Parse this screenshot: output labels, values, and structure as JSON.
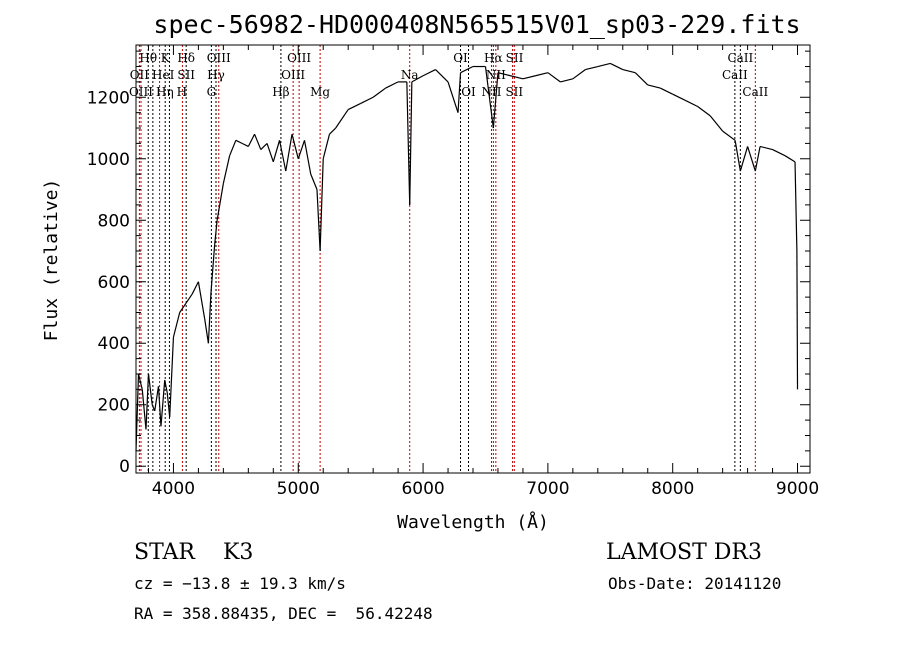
{
  "chart_data": {
    "type": "line",
    "title": "spec-56982-HD000408N565515V01_sp03-229.fits",
    "xlabel": "Wavelength (Å)",
    "ylabel": "Flux (relative)",
    "xlim": [
      3700,
      9100
    ],
    "ylim": [
      -22,
      1370
    ],
    "xticks": [
      4000,
      5000,
      6000,
      7000,
      8000,
      9000
    ],
    "yticks": [
      0,
      200,
      400,
      600,
      800,
      1000,
      1200
    ],
    "grid": false,
    "series": [
      {
        "name": "spectrum",
        "color": "#000000",
        "x": [
          3700,
          3720,
          3750,
          3780,
          3800,
          3830,
          3850,
          3880,
          3900,
          3930,
          3950,
          3970,
          4000,
          4050,
          4100,
          4150,
          4200,
          4250,
          4280,
          4300,
          4330,
          4350,
          4400,
          4450,
          4500,
          4550,
          4600,
          4650,
          4700,
          4750,
          4800,
          4850,
          4900,
          4950,
          5000,
          5050,
          5100,
          5150,
          5175,
          5200,
          5250,
          5300,
          5400,
          5500,
          5600,
          5700,
          5800,
          5870,
          5893,
          5910,
          6000,
          6100,
          6200,
          6280,
          6300,
          6400,
          6500,
          6563,
          6600,
          6700,
          6800,
          6900,
          7000,
          7100,
          7200,
          7300,
          7400,
          7500,
          7600,
          7700,
          7800,
          7900,
          8000,
          8100,
          8200,
          8300,
          8400,
          8500,
          8542,
          8600,
          8662,
          8700,
          8800,
          8900,
          8980,
          8995,
          9000
        ],
        "y": [
          50,
          300,
          250,
          120,
          300,
          200,
          180,
          260,
          130,
          280,
          240,
          160,
          420,
          500,
          530,
          560,
          600,
          480,
          400,
          560,
          720,
          800,
          920,
          1010,
          1060,
          1050,
          1040,
          1080,
          1030,
          1050,
          990,
          1060,
          960,
          1080,
          1000,
          1060,
          950,
          900,
          700,
          1000,
          1080,
          1100,
          1160,
          1180,
          1200,
          1230,
          1250,
          1250,
          850,
          1250,
          1270,
          1290,
          1250,
          1150,
          1280,
          1300,
          1300,
          1100,
          1280,
          1270,
          1260,
          1270,
          1280,
          1250,
          1260,
          1290,
          1300,
          1310,
          1290,
          1280,
          1240,
          1230,
          1210,
          1190,
          1170,
          1140,
          1090,
          1060,
          960,
          1040,
          960,
          1040,
          1030,
          1010,
          990,
          700,
          250
        ]
      }
    ],
    "lines": [
      {
        "label": "Hθ",
        "wl": 3798,
        "color": "#000000",
        "row": 0
      },
      {
        "label": "OII",
        "wl": 3727,
        "color": "#c00000",
        "row": 1
      },
      {
        "label": "OIII",
        "wl": 3740,
        "color": "#c00000",
        "row": 2
      },
      {
        "label": "Hη",
        "wl": 3835,
        "color": "#000000",
        "row": 2
      },
      {
        "label": "HeI",
        "wl": 3889,
        "color": "#c00000",
        "row": 1
      },
      {
        "label": "K",
        "wl": 3934,
        "color": "#000000",
        "row": 0
      },
      {
        "label": "H",
        "wl": 3968,
        "color": "#000000",
        "row": 2
      },
      {
        "label": "SII",
        "wl": 4072,
        "color": "#c00000",
        "row": 1
      },
      {
        "label": "Hδ",
        "wl": 4102,
        "color": "#000000",
        "row": 0
      },
      {
        "label": "G",
        "wl": 4304,
        "color": "#000000",
        "row": 2
      },
      {
        "label": "Hγ",
        "wl": 4341,
        "color": "#000000",
        "row": 1
      },
      {
        "label": "OIII",
        "wl": 4363,
        "color": "#c00000",
        "row": 0
      },
      {
        "label": "Hβ",
        "wl": 4861,
        "color": "#000000",
        "row": 2
      },
      {
        "label": "OIII",
        "wl": 4959,
        "color": "#c00000",
        "row": 1
      },
      {
        "label": "OIII",
        "wl": 5007,
        "color": "#c00000",
        "row": 0
      },
      {
        "label": "Mg",
        "wl": 5175,
        "color": "#c00000",
        "row": 2
      },
      {
        "label": "Na",
        "wl": 5893,
        "color": "#c00000",
        "row": 1
      },
      {
        "label": "OI",
        "wl": 6300,
        "color": "#000000",
        "row": 0
      },
      {
        "label": "OI",
        "wl": 6364,
        "color": "#000000",
        "row": 2
      },
      {
        "label": "NII",
        "wl": 6548,
        "color": "#c00000",
        "row": 2
      },
      {
        "label": "Hα",
        "wl": 6563,
        "color": "#c00000",
        "row": 0
      },
      {
        "label": "NII",
        "wl": 6583,
        "color": "#c00000",
        "row": 1
      },
      {
        "label": "SII",
        "wl": 6717,
        "color": "#c00000",
        "row": 0
      },
      {
        "label": "SII",
        "wl": 6731,
        "color": "#c00000",
        "row": 2
      },
      {
        "label": "CaII",
        "wl": 8498,
        "color": "#000000",
        "row": 1
      },
      {
        "label": "CaII",
        "wl": 8542,
        "color": "#000000",
        "row": 0
      },
      {
        "label": "CaII",
        "wl": 8662,
        "color": "#c00000",
        "row": 2
      }
    ]
  },
  "info": {
    "class": "STAR    K3",
    "survey": "LAMOST DR3",
    "cz": "cz = −13.8 ± 19.3 km/s",
    "obs_date": "Obs-Date: 20141120",
    "coords": "RA = 358.88435, DEC =  56.42248"
  }
}
